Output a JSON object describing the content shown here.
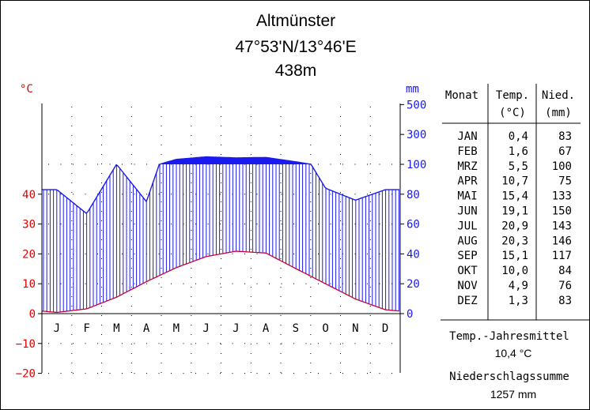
{
  "header": {
    "title": "Altmünster",
    "coords": "47°53'N/13°46'E",
    "elevation": "438m"
  },
  "colors": {
    "temp": "#e00000",
    "temp_line": "#cc0033",
    "precip": "#1a1aee",
    "grid": "#000000"
  },
  "chart_data": {
    "type": "climate-diagram",
    "months": [
      "J",
      "F",
      "M",
      "A",
      "M",
      "J",
      "J",
      "A",
      "S",
      "O",
      "N",
      "D"
    ],
    "temp_unit": "°C",
    "precip_unit": "mm",
    "temperature": [
      0.4,
      1.6,
      5.5,
      10.7,
      15.4,
      19.1,
      20.9,
      20.3,
      15.1,
      10.0,
      4.9,
      1.3
    ],
    "precipitation": [
      83,
      67,
      100,
      75,
      133,
      150,
      143,
      146,
      117,
      84,
      76,
      83
    ],
    "temp_ticks": [
      "40",
      "30",
      "20",
      "10",
      "0",
      "−10",
      "−20"
    ],
    "precip_ticks": [
      "500",
      "300",
      "100",
      "80",
      "60",
      "40",
      "20",
      "0"
    ],
    "temp_ylim": [
      -20,
      50
    ],
    "precip_ylim": [
      0,
      500
    ]
  },
  "table": {
    "headers": [
      {
        "line1": "Monat",
        "line2": ""
      },
      {
        "line1": "Temp.",
        "line2": "(°C)"
      },
      {
        "line1": "Nied.",
        "line2": "(mm)"
      }
    ],
    "rows": [
      {
        "month": "JAN",
        "temp": "0,4",
        "precip": "83"
      },
      {
        "month": "FEB",
        "temp": "1,6",
        "precip": "67"
      },
      {
        "month": "MRZ",
        "temp": "5,5",
        "precip": "100"
      },
      {
        "month": "APR",
        "temp": "10,7",
        "precip": "75"
      },
      {
        "month": "MAI",
        "temp": "15,4",
        "precip": "133"
      },
      {
        "month": "JUN",
        "temp": "19,1",
        "precip": "150"
      },
      {
        "month": "JUL",
        "temp": "20,9",
        "precip": "143"
      },
      {
        "month": "AUG",
        "temp": "20,3",
        "precip": "146"
      },
      {
        "month": "SEP",
        "temp": "15,1",
        "precip": "117"
      },
      {
        "month": "OKT",
        "temp": "10,0",
        "precip": "84"
      },
      {
        "month": "NOV",
        "temp": "4,9",
        "precip": "76"
      },
      {
        "month": "DEZ",
        "temp": "1,3",
        "precip": "83"
      }
    ]
  },
  "summary": {
    "mean_label": "Temp.-Jahresmittel",
    "mean_value": "10,4 °C",
    "sum_label": "Niederschlagssumme",
    "sum_value": "1257 mm"
  }
}
